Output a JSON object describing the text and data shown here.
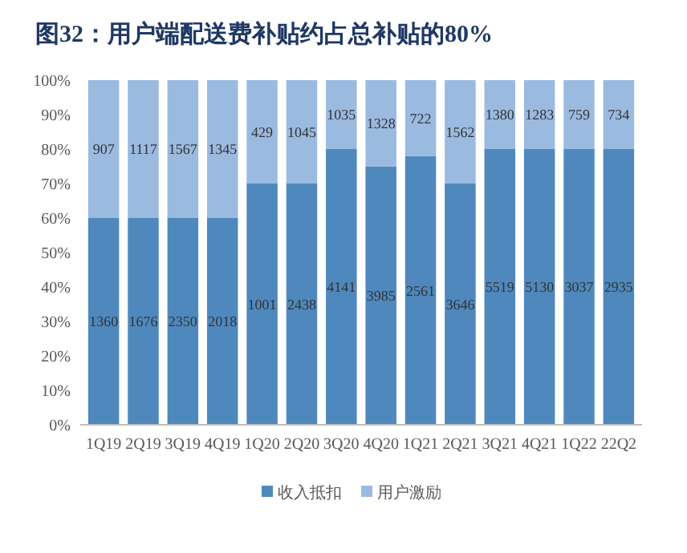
{
  "chart_data": {
    "type": "bar",
    "title": "图32：用户端配送费补贴约占总补贴的80%",
    "stacked": true,
    "categories": [
      "1Q19",
      "2Q19",
      "3Q19",
      "4Q19",
      "1Q20",
      "2Q20",
      "3Q20",
      "4Q20",
      "1Q21",
      "2Q21",
      "3Q21",
      "4Q21",
      "1Q22",
      "22Q2"
    ],
    "series": [
      {
        "name": "收入抵扣",
        "color": "#4f88bd",
        "values": [
          60,
          60,
          60,
          60,
          70,
          70,
          80,
          75,
          78,
          70,
          80,
          80,
          80,
          80
        ]
      },
      {
        "name": "用户激励",
        "color": "#9bbae0",
        "values": [
          40,
          40,
          40,
          40,
          30,
          30,
          20,
          25,
          22,
          30,
          20,
          20,
          20,
          20
        ]
      }
    ],
    "annotations": [
      "1360",
      "1676",
      "2350",
      "2018",
      "1001",
      "2438",
      "4141",
      "3985",
      "2561",
      "3646",
      "5519",
      "5130",
      "3037",
      "2935",
      "907",
      "1117",
      "1567",
      "1345",
      "429",
      "1045",
      "1035",
      "1328",
      "722",
      "1562",
      "1380",
      "1283",
      "759",
      "734"
    ],
    "ylim": [
      0,
      100
    ],
    "yticks": [
      {
        "value": 0,
        "label": "0%"
      },
      {
        "value": 10,
        "label": "10%"
      },
      {
        "value": 20,
        "label": "20%"
      },
      {
        "value": 30,
        "label": "30%"
      },
      {
        "value": 40,
        "label": "40%"
      },
      {
        "value": 50,
        "label": "50%"
      },
      {
        "value": 60,
        "label": "60%"
      },
      {
        "value": 70,
        "label": "70%"
      },
      {
        "value": 80,
        "label": "80%"
      },
      {
        "value": 90,
        "label": "90%"
      },
      {
        "value": 100,
        "label": "100%"
      }
    ],
    "grid": false,
    "legend": "bottom"
  }
}
